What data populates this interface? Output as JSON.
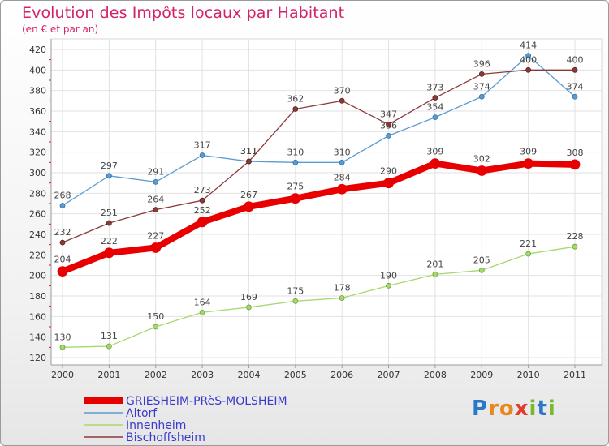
{
  "title": "Evolution des Impôts locaux par Habitant",
  "subtitle": "(en € et par an)",
  "logo": {
    "text": "Proxiti",
    "letters": [
      "P",
      "r",
      "o",
      "x",
      "i",
      "t",
      "i"
    ],
    "colors": [
      "#2a78c8",
      "#e9881f",
      "#e9881f",
      "#e23b2a",
      "#7ab82a",
      "#2a78c8",
      "#7ab82a"
    ]
  },
  "chart_data": {
    "type": "line",
    "x": [
      "2000",
      "2001",
      "2002",
      "2003",
      "2004",
      "2005",
      "2006",
      "2007",
      "2008",
      "2009",
      "2010",
      "2011"
    ],
    "ylim": [
      120,
      420
    ],
    "yticks": [
      120,
      140,
      160,
      180,
      200,
      220,
      240,
      260,
      280,
      300,
      320,
      340,
      360,
      380,
      400,
      420
    ],
    "grid": true,
    "legend_position": "bottom-left",
    "series": [
      {
        "name": "GRIESHEIM-PRèS-MOLSHEIM",
        "color": "#e80000",
        "width": 8,
        "marker": 6,
        "values": [
          204,
          222,
          227,
          252,
          267,
          275,
          284,
          290,
          309,
          302,
          309,
          308
        ]
      },
      {
        "name": "Altorf",
        "color": "#5a9bd0",
        "width": 1.3,
        "marker": 3,
        "values": [
          268,
          297,
          291,
          317,
          311,
          310,
          310,
          336,
          354,
          374,
          414,
          374
        ]
      },
      {
        "name": "Innenheim",
        "color": "#a6d86e",
        "width": 1.3,
        "marker": 3,
        "values": [
          130,
          131,
          150,
          164,
          169,
          175,
          178,
          190,
          201,
          205,
          221,
          228
        ]
      },
      {
        "name": "Bischoffsheim",
        "color": "#8b3a3a",
        "width": 1.3,
        "marker": 3,
        "values": [
          232,
          251,
          264,
          273,
          311,
          362,
          370,
          347,
          373,
          396,
          400,
          400
        ]
      }
    ]
  }
}
